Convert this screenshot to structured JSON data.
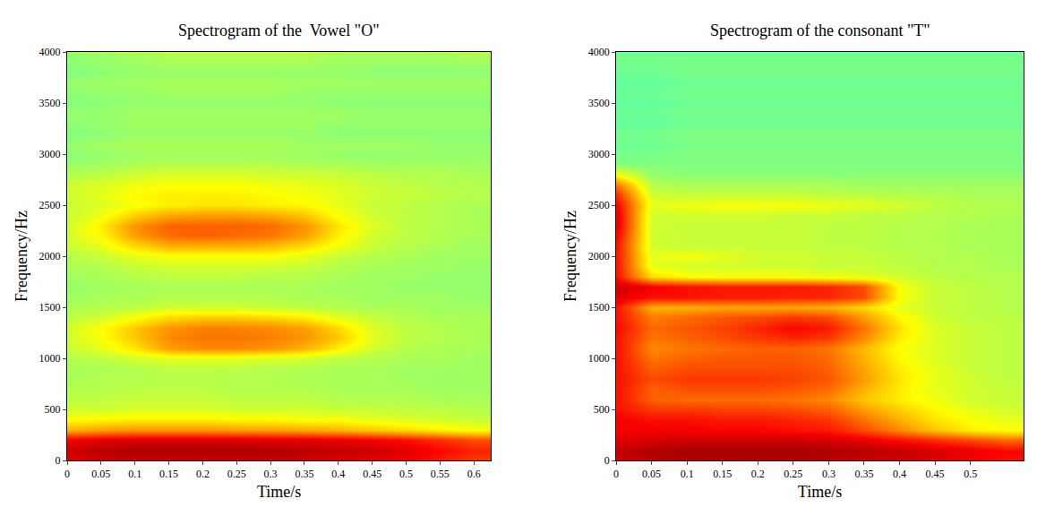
{
  "chart_data": [
    {
      "type": "heatmap",
      "title": "Spectrogram of the  Vowel \"O\"",
      "x_label": "Time/s",
      "y_label": "Frequency/Hz",
      "color": "Jet",
      "xlim": [
        0,
        0.625
      ],
      "ylim": [
        0,
        4000
      ],
      "zlim": [
        0,
        100
      ],
      "xticks": [
        0,
        0.05,
        0.1,
        0.15,
        0.2,
        0.25,
        0.3,
        0.35,
        0.4,
        0.45,
        0.5,
        0.55,
        0.6
      ],
      "yticks": [
        0,
        500,
        1000,
        1500,
        2000,
        2500,
        3000,
        3500,
        4000
      ],
      "x": [
        0,
        0.05,
        0.1,
        0.15,
        0.2,
        0.25,
        0.3,
        0.35,
        0.4,
        0.45,
        0.5,
        0.55,
        0.6
      ],
      "y": [
        0,
        100,
        200,
        300,
        400,
        500,
        600,
        700,
        800,
        900,
        1000,
        1100,
        1200,
        1300,
        1400,
        1500,
        1600,
        1700,
        1800,
        1900,
        2000,
        2100,
        2200,
        2300,
        2400,
        2500,
        2600,
        2700,
        2800,
        2900,
        3000,
        3100,
        3200,
        3300,
        3400,
        3500,
        3600,
        3700,
        3800,
        3900,
        4000
      ],
      "z": [
        [
          90,
          92,
          93,
          93,
          93,
          93,
          93,
          92,
          91,
          90,
          88,
          85,
          82
        ],
        [
          92,
          94,
          95,
          95,
          95,
          95,
          95,
          94,
          93,
          92,
          90,
          87,
          84
        ],
        [
          88,
          90,
          91,
          91,
          91,
          91,
          90,
          90,
          89,
          88,
          86,
          83,
          80
        ],
        [
          70,
          72,
          73,
          73,
          73,
          72,
          72,
          71,
          70,
          68,
          66,
          64,
          62
        ],
        [
          62,
          63,
          64,
          64,
          64,
          63,
          63,
          62,
          62,
          60,
          59,
          58,
          57
        ],
        [
          58,
          58,
          59,
          59,
          59,
          58,
          58,
          58,
          57,
          57,
          56,
          56,
          55
        ],
        [
          56,
          56,
          57,
          57,
          57,
          56,
          56,
          56,
          55,
          55,
          55,
          54,
          54
        ],
        [
          55,
          55,
          56,
          56,
          56,
          55,
          55,
          55,
          54,
          54,
          54,
          53,
          53
        ],
        [
          54,
          55,
          55,
          55,
          55,
          55,
          55,
          54,
          54,
          54,
          53,
          53,
          53
        ],
        [
          54,
          54,
          55,
          56,
          56,
          56,
          55,
          55,
          54,
          54,
          53,
          53,
          53
        ],
        [
          55,
          56,
          58,
          60,
          60,
          60,
          59,
          58,
          56,
          55,
          54,
          54,
          53
        ],
        [
          57,
          60,
          65,
          72,
          74,
          74,
          73,
          70,
          64,
          58,
          55,
          54,
          54
        ],
        [
          58,
          62,
          68,
          74,
          76,
          76,
          75,
          73,
          68,
          60,
          56,
          55,
          54
        ],
        [
          58,
          62,
          68,
          73,
          75,
          75,
          74,
          72,
          66,
          59,
          56,
          55,
          54
        ],
        [
          56,
          58,
          62,
          66,
          67,
          67,
          66,
          64,
          60,
          57,
          55,
          54,
          54
        ],
        [
          54,
          55,
          56,
          58,
          58,
          58,
          57,
          56,
          55,
          54,
          54,
          53,
          53
        ],
        [
          53,
          54,
          54,
          55,
          55,
          55,
          55,
          54,
          54,
          53,
          53,
          53,
          52
        ],
        [
          52,
          53,
          54,
          54,
          54,
          54,
          54,
          54,
          53,
          53,
          52,
          52,
          52
        ],
        [
          53,
          54,
          55,
          56,
          56,
          56,
          55,
          55,
          54,
          53,
          53,
          52,
          52
        ],
        [
          54,
          55,
          57,
          58,
          58,
          58,
          58,
          57,
          55,
          54,
          53,
          53,
          52
        ],
        [
          55,
          57,
          60,
          62,
          62,
          62,
          62,
          60,
          57,
          55,
          54,
          53,
          53
        ],
        [
          57,
          60,
          66,
          70,
          70,
          70,
          69,
          66,
          61,
          57,
          55,
          54,
          53
        ],
        [
          58,
          63,
          72,
          77,
          78,
          77,
          76,
          72,
          64,
          58,
          56,
          55,
          54
        ],
        [
          58,
          64,
          73,
          78,
          78,
          78,
          77,
          73,
          65,
          59,
          56,
          55,
          54
        ],
        [
          57,
          61,
          67,
          71,
          72,
          72,
          71,
          68,
          62,
          58,
          56,
          55,
          54
        ],
        [
          57,
          59,
          62,
          64,
          65,
          65,
          64,
          63,
          60,
          57,
          56,
          55,
          54
        ],
        [
          58,
          60,
          63,
          64,
          64,
          64,
          63,
          62,
          60,
          58,
          57,
          56,
          55
        ],
        [
          57,
          59,
          61,
          62,
          62,
          62,
          61,
          60,
          59,
          57,
          56,
          55,
          55
        ],
        [
          55,
          56,
          58,
          59,
          59,
          59,
          58,
          58,
          57,
          56,
          55,
          55,
          54
        ],
        [
          52,
          53,
          54,
          55,
          55,
          55,
          55,
          54,
          54,
          53,
          53,
          53,
          53
        ],
        [
          51,
          52,
          53,
          53,
          53,
          53,
          53,
          53,
          52,
          52,
          52,
          52,
          52
        ],
        [
          52,
          53,
          54,
          54,
          54,
          54,
          54,
          53,
          53,
          53,
          53,
          52,
          52
        ],
        [
          50,
          51,
          52,
          52,
          52,
          52,
          52,
          52,
          51,
          51,
          51,
          51,
          51
        ],
        [
          51,
          52,
          53,
          53,
          53,
          53,
          53,
          53,
          52,
          52,
          52,
          52,
          52
        ],
        [
          52,
          52,
          53,
          53,
          53,
          53,
          53,
          53,
          53,
          52,
          52,
          52,
          52
        ],
        [
          50,
          51,
          52,
          52,
          52,
          52,
          52,
          52,
          51,
          51,
          51,
          51,
          51
        ],
        [
          51,
          52,
          52,
          53,
          53,
          53,
          53,
          52,
          52,
          52,
          52,
          52,
          52
        ],
        [
          52,
          53,
          53,
          54,
          54,
          54,
          54,
          53,
          53,
          53,
          53,
          53,
          53
        ],
        [
          50,
          51,
          52,
          52,
          52,
          52,
          52,
          52,
          52,
          51,
          51,
          51,
          51
        ],
        [
          51,
          52,
          53,
          54,
          54,
          54,
          54,
          54,
          53,
          53,
          53,
          53,
          53
        ],
        [
          52,
          53,
          54,
          55,
          55,
          55,
          55,
          55,
          54,
          54,
          54,
          54,
          55
        ]
      ]
    },
    {
      "type": "heatmap",
      "title": "Spectrogram of the consonant \"T\"",
      "x_label": "Time/s",
      "y_label": "Frequency/Hz",
      "color": "Jet",
      "xlim": [
        0,
        0.575
      ],
      "ylim": [
        0,
        4000
      ],
      "zlim": [
        0,
        100
      ],
      "xticks": [
        0,
        0.05,
        0.1,
        0.15,
        0.2,
        0.25,
        0.3,
        0.35,
        0.4,
        0.45,
        0.5
      ],
      "yticks": [
        0,
        500,
        1000,
        1500,
        2000,
        2500,
        3000,
        3500,
        4000
      ],
      "x": [
        0,
        0.05,
        0.1,
        0.15,
        0.2,
        0.25,
        0.3,
        0.35,
        0.4,
        0.45,
        0.5,
        0.55
      ],
      "y": [
        0,
        100,
        200,
        300,
        400,
        500,
        600,
        700,
        800,
        900,
        1000,
        1100,
        1200,
        1300,
        1400,
        1500,
        1600,
        1700,
        1800,
        1900,
        2000,
        2100,
        2200,
        2300,
        2400,
        2500,
        2600,
        2700,
        2800,
        2900,
        3000,
        3100,
        3200,
        3300,
        3400,
        3500,
        3600,
        3700,
        3800,
        3900,
        4000
      ],
      "z": [
        [
          92,
          94,
          95,
          95,
          95,
          95,
          94,
          93,
          92,
          90,
          88,
          86
        ],
        [
          93,
          95,
          96,
          96,
          96,
          96,
          95,
          94,
          93,
          91,
          89,
          87
        ],
        [
          90,
          91,
          92,
          92,
          92,
          92,
          91,
          89,
          86,
          83,
          80,
          77
        ],
        [
          88,
          88,
          88,
          87,
          87,
          86,
          85,
          80,
          74,
          68,
          64,
          62
        ],
        [
          88,
          86,
          86,
          85,
          85,
          84,
          82,
          76,
          70,
          65,
          62,
          60
        ],
        [
          86,
          82,
          82,
          81,
          81,
          80,
          78,
          72,
          67,
          63,
          60,
          58
        ],
        [
          86,
          78,
          77,
          77,
          77,
          76,
          74,
          68,
          64,
          61,
          58,
          57
        ],
        [
          86,
          78,
          80,
          80,
          80,
          79,
          77,
          70,
          64,
          60,
          58,
          57
        ],
        [
          86,
          80,
          82,
          82,
          82,
          81,
          79,
          72,
          65,
          60,
          58,
          56
        ],
        [
          86,
          78,
          80,
          80,
          80,
          80,
          78,
          71,
          64,
          60,
          57,
          56
        ],
        [
          86,
          76,
          78,
          79,
          79,
          79,
          77,
          70,
          63,
          59,
          57,
          56
        ],
        [
          86,
          74,
          76,
          77,
          78,
          78,
          76,
          69,
          62,
          59,
          57,
          56
        ],
        [
          86,
          76,
          78,
          80,
          82,
          84,
          82,
          74,
          64,
          59,
          57,
          56
        ],
        [
          87,
          77,
          79,
          81,
          84,
          87,
          85,
          76,
          65,
          59,
          57,
          56
        ],
        [
          86,
          75,
          77,
          79,
          80,
          82,
          80,
          72,
          63,
          58,
          56,
          56
        ],
        [
          86,
          70,
          70,
          71,
          71,
          71,
          70,
          66,
          60,
          57,
          56,
          55
        ],
        [
          90,
          86,
          86,
          85,
          85,
          84,
          84,
          80,
          62,
          57,
          56,
          55
        ],
        [
          92,
          88,
          86,
          85,
          85,
          85,
          84,
          80,
          62,
          57,
          56,
          55
        ],
        [
          86,
          66,
          63,
          62,
          62,
          62,
          61,
          60,
          58,
          56,
          55,
          55
        ],
        [
          86,
          60,
          58,
          58,
          58,
          58,
          57,
          57,
          56,
          55,
          55,
          54
        ],
        [
          86,
          60,
          62,
          60,
          58,
          58,
          57,
          57,
          56,
          55,
          55,
          54
        ],
        [
          86,
          58,
          57,
          57,
          57,
          57,
          56,
          56,
          55,
          55,
          54,
          54
        ],
        [
          88,
          58,
          57,
          57,
          57,
          57,
          56,
          56,
          55,
          55,
          54,
          54
        ],
        [
          90,
          58,
          57,
          57,
          57,
          57,
          56,
          56,
          55,
          55,
          54,
          54
        ],
        [
          90,
          58,
          58,
          58,
          58,
          57,
          57,
          56,
          56,
          55,
          55,
          54
        ],
        [
          88,
          60,
          61,
          62,
          62,
          62,
          61,
          60,
          58,
          56,
          55,
          55
        ],
        [
          84,
          58,
          57,
          57,
          57,
          57,
          56,
          56,
          55,
          55,
          54,
          54
        ],
        [
          76,
          55,
          54,
          54,
          54,
          54,
          54,
          53,
          53,
          53,
          53,
          53
        ],
        [
          62,
          52,
          51,
          51,
          51,
          51,
          51,
          51,
          51,
          51,
          51,
          51
        ],
        [
          50,
          50,
          50,
          50,
          50,
          50,
          50,
          50,
          50,
          50,
          50,
          50
        ],
        [
          49,
          49,
          50,
          50,
          50,
          50,
          50,
          50,
          50,
          50,
          50,
          50
        ],
        [
          48,
          48,
          49,
          49,
          49,
          49,
          49,
          49,
          49,
          49,
          49,
          49
        ],
        [
          49,
          49,
          50,
          50,
          50,
          50,
          50,
          50,
          50,
          50,
          50,
          50
        ],
        [
          47,
          47,
          48,
          48,
          48,
          48,
          48,
          48,
          48,
          48,
          48,
          48
        ],
        [
          48,
          48,
          49,
          49,
          49,
          49,
          49,
          49,
          49,
          49,
          49,
          49
        ],
        [
          47,
          47,
          48,
          48,
          48,
          48,
          48,
          48,
          48,
          48,
          48,
          48
        ],
        [
          48,
          48,
          49,
          49,
          49,
          49,
          49,
          49,
          49,
          49,
          49,
          49
        ],
        [
          47,
          47,
          48,
          48,
          48,
          48,
          48,
          48,
          48,
          48,
          48,
          48
        ],
        [
          48,
          48,
          49,
          49,
          49,
          49,
          49,
          49,
          49,
          49,
          49,
          49
        ],
        [
          49,
          49,
          49,
          49,
          49,
          49,
          49,
          49,
          49,
          49,
          49,
          49
        ],
        [
          48,
          48,
          48,
          48,
          48,
          48,
          48,
          48,
          48,
          48,
          48,
          48
        ]
      ]
    }
  ]
}
